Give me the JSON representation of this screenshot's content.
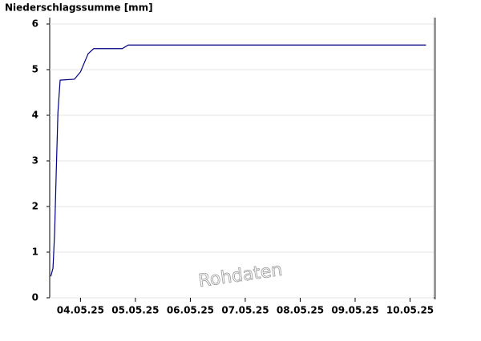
{
  "chart_data": {
    "type": "line",
    "y_label": "Niederschlagssumme [mm]",
    "watermark": "Rohdaten",
    "xlim": [
      -0.06,
      6.93
    ],
    "xticks": [
      {
        "value": 0.5,
        "label": "04.05.25"
      },
      {
        "value": 1.5,
        "label": "05.05.25"
      },
      {
        "value": 2.5,
        "label": "06.05.25"
      },
      {
        "value": 3.5,
        "label": "07.05.25"
      },
      {
        "value": 4.5,
        "label": "08.05.25"
      },
      {
        "value": 5.5,
        "label": "09.05.25"
      },
      {
        "value": 6.5,
        "label": "10.05.25"
      }
    ],
    "ylim": [
      0,
      6
    ],
    "yticks": [
      0,
      1,
      2,
      3,
      4,
      5,
      6
    ],
    "grid": true,
    "series": [
      {
        "color": "#000080",
        "x": [
          -0.04,
          0,
          0.03,
          0.06,
          0.09,
          0.13,
          0.39,
          0.5,
          0.64,
          0.74,
          1.26,
          1.37,
          6.79
        ],
        "values": [
          0.47,
          0.65,
          1.44,
          2.8,
          4.07,
          4.77,
          4.79,
          4.95,
          5.35,
          5.46,
          5.46,
          5.54,
          5.54
        ]
      }
    ]
  }
}
